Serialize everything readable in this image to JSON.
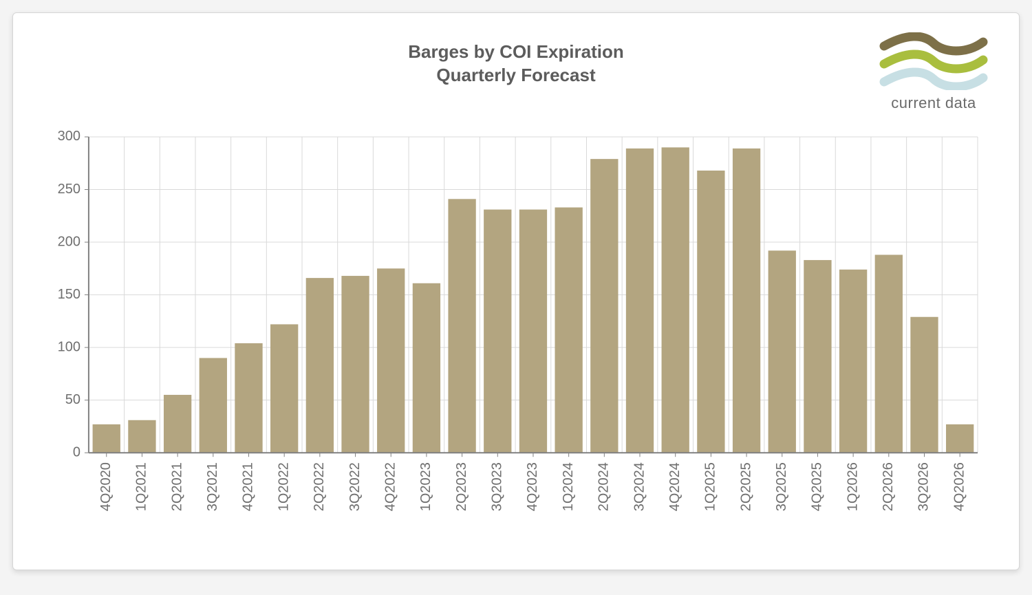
{
  "title_line1": "Barges by COI Expiration",
  "title_line2": "Quarterly Forecast",
  "title_fontsize": 26,
  "title_color": "#5c5c5c",
  "logo": {
    "wave_colors": [
      "#7d7048",
      "#a9be3e",
      "#c7dfe4"
    ],
    "caption": "current data",
    "caption_fontsize": 22,
    "caption_color": "#6a6a6a"
  },
  "chart": {
    "type": "bar",
    "background_color": "#ffffff",
    "grid_color": "#d9d9d9",
    "axis_color": "#808080",
    "bar_color": "#b3a580",
    "bar_width_ratio": 0.78,
    "ylim": [
      0,
      300
    ],
    "ytick_step": 50,
    "ytick_fontsize": 20,
    "xtick_fontsize": 20,
    "tick_color": "#6f6f6f",
    "categories": [
      "4Q2020",
      "1Q2021",
      "2Q2021",
      "3Q2021",
      "4Q2021",
      "1Q2022",
      "2Q2022",
      "3Q2022",
      "4Q2022",
      "1Q2023",
      "2Q2023",
      "3Q2023",
      "4Q2023",
      "1Q2024",
      "2Q2024",
      "3Q2024",
      "4Q2024",
      "1Q2025",
      "2Q2025",
      "3Q2025",
      "4Q2025",
      "1Q2026",
      "2Q2026",
      "3Q2026",
      "4Q2026"
    ],
    "values": [
      27,
      31,
      55,
      90,
      104,
      122,
      166,
      168,
      175,
      161,
      241,
      231,
      231,
      233,
      279,
      289,
      290,
      268,
      289,
      192,
      183,
      174,
      188,
      129,
      27
    ]
  }
}
